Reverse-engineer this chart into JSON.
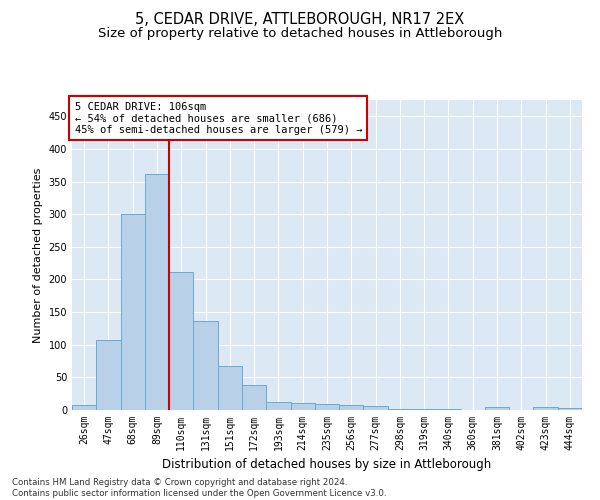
{
  "title1": "5, CEDAR DRIVE, ATTLEBOROUGH, NR17 2EX",
  "title2": "Size of property relative to detached houses in Attleborough",
  "xlabel": "Distribution of detached houses by size in Attleborough",
  "ylabel": "Number of detached properties",
  "categories": [
    "26sqm",
    "47sqm",
    "68sqm",
    "89sqm",
    "110sqm",
    "131sqm",
    "151sqm",
    "172sqm",
    "193sqm",
    "214sqm",
    "235sqm",
    "256sqm",
    "277sqm",
    "298sqm",
    "319sqm",
    "340sqm",
    "360sqm",
    "381sqm",
    "402sqm",
    "423sqm",
    "444sqm"
  ],
  "values": [
    8,
    108,
    300,
    362,
    212,
    137,
    68,
    38,
    13,
    11,
    9,
    8,
    6,
    2,
    1,
    1,
    0,
    4,
    0,
    4,
    3
  ],
  "bar_color": "#b8d0e8",
  "bar_edge_color": "#6aaad4",
  "vline_x_index": 4,
  "vline_color": "#cc0000",
  "annotation_text": "5 CEDAR DRIVE: 106sqm\n← 54% of detached houses are smaller (686)\n45% of semi-detached houses are larger (579) →",
  "annotation_box_color": "#ffffff",
  "annotation_box_edge": "#cc0000",
  "ylim": [
    0,
    475
  ],
  "yticks": [
    0,
    50,
    100,
    150,
    200,
    250,
    300,
    350,
    400,
    450
  ],
  "bg_color": "#dce9f5",
  "grid_color": "#ffffff",
  "footnote": "Contains HM Land Registry data © Crown copyright and database right 2024.\nContains public sector information licensed under the Open Government Licence v3.0.",
  "title1_fontsize": 10.5,
  "title2_fontsize": 9.5,
  "xlabel_fontsize": 8.5,
  "ylabel_fontsize": 8,
  "tick_fontsize": 7,
  "annot_fontsize": 7.5
}
